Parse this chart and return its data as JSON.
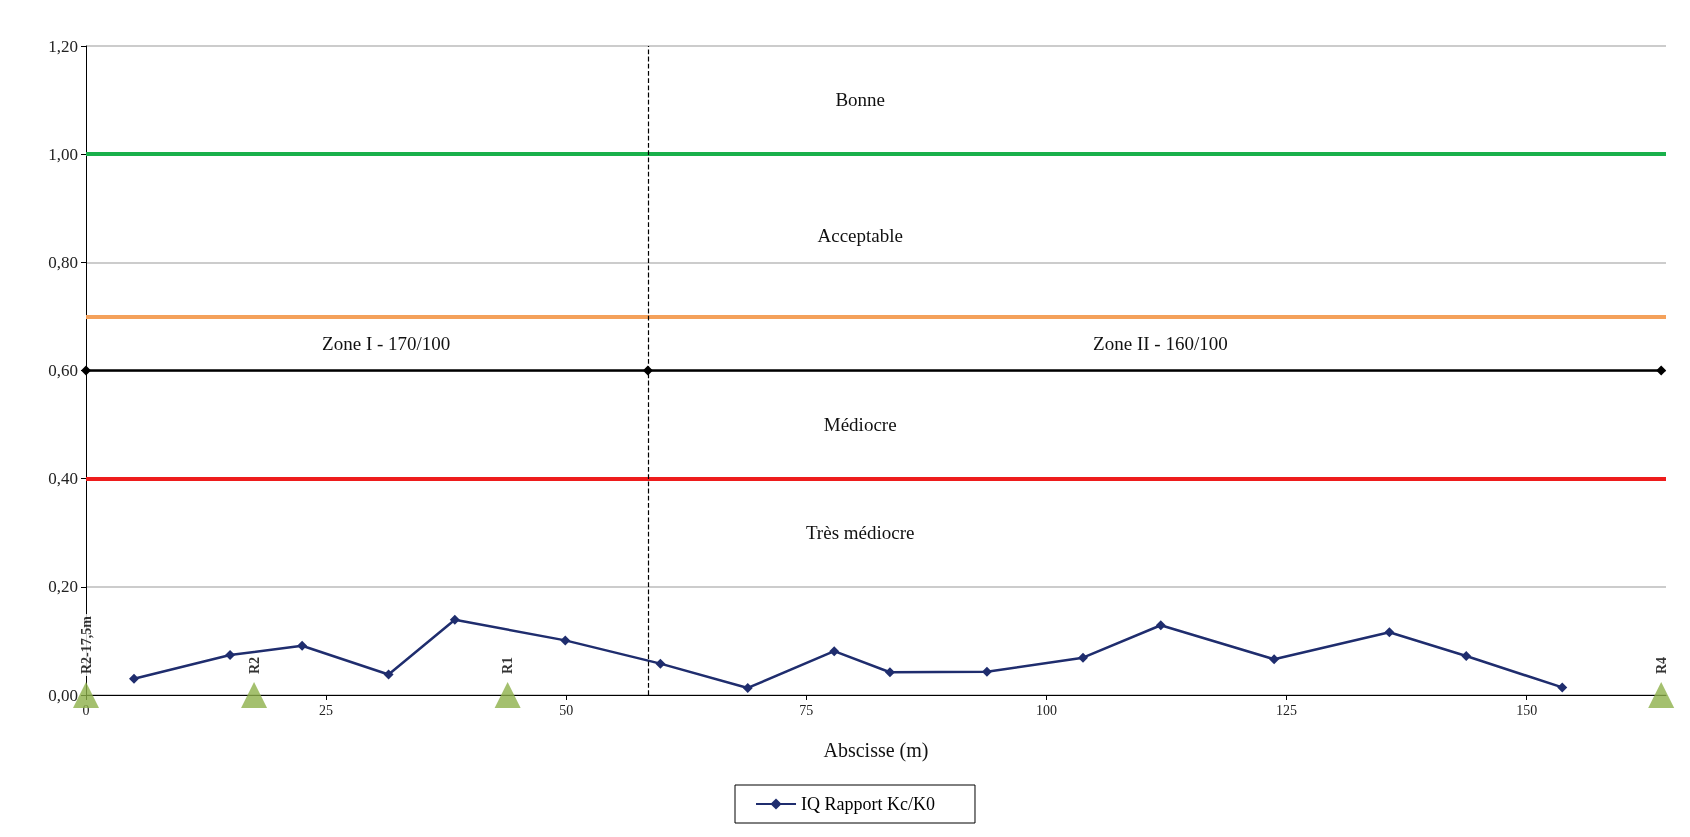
{
  "chart_data": {
    "type": "line",
    "xlabel": "Abscisse (m)",
    "xlim": [
      0,
      164.5
    ],
    "xticks": [
      0,
      25,
      50,
      75,
      100,
      125,
      150
    ],
    "ylim": [
      0,
      1.2
    ],
    "yticks": [
      {
        "value": 0,
        "label": "0,00"
      },
      {
        "value": 0.2,
        "label": "0,20"
      },
      {
        "value": 0.4,
        "label": "0,40"
      },
      {
        "value": 0.6,
        "label": "0,60"
      },
      {
        "value": 0.8,
        "label": "0,80"
      },
      {
        "value": 1,
        "label": "1,00"
      },
      {
        "value": 1.2,
        "label": "1,20"
      }
    ],
    "grid": "y",
    "legend": "bottom",
    "series": [
      {
        "name": "IQ Rapport Kc/K0",
        "color": "#1f2d6e",
        "marker": "diamond",
        "x": [
          5,
          15,
          22.5,
          31.5,
          38.4,
          49.9,
          59.8,
          68.9,
          77.9,
          83.7,
          93.8,
          103.8,
          111.9,
          123.7,
          135.7,
          143.7,
          153.7
        ],
        "values": [
          0.03,
          0.074,
          0.091,
          0.038,
          0.139,
          0.101,
          0.058,
          0.013,
          0.081,
          0.042,
          0.043,
          0.069,
          0.129,
          0.066,
          0.116,
          0.072,
          0.014
        ]
      },
      {
        "type": "line",
        "color": "#000000",
        "marker": "diamond",
        "x": [
          0,
          58.5,
          164
        ],
        "values": [
          0.6,
          0.6,
          0.6
        ]
      },
      {
        "type": "scatter",
        "color": "#8db04a",
        "marker": "triangle",
        "x": [
          0,
          17.5,
          43.9,
          164
        ],
        "values": [
          0,
          0,
          0,
          0
        ],
        "value_labels": [
          "R2-17,5m",
          "R2",
          "R1",
          "R4"
        ]
      }
    ],
    "ref_lines": [
      {
        "axis": "y",
        "value": 1,
        "color": "#19b04b",
        "line_style": "solid"
      },
      {
        "axis": "y",
        "value": 0.7,
        "color": "#f4a15b",
        "line_style": "solid"
      },
      {
        "axis": "y",
        "value": 0.4,
        "color": "#ee1c1c",
        "line_style": "solid"
      },
      {
        "axis": "x",
        "value": 58.5,
        "color": "#000000",
        "line_style": "dashed"
      }
    ],
    "annotations": [
      "Bonne",
      "Acceptable",
      "Zone I - 170/100",
      "Zone II - 160/100",
      "Médiocre",
      "Très médiocre"
    ]
  }
}
